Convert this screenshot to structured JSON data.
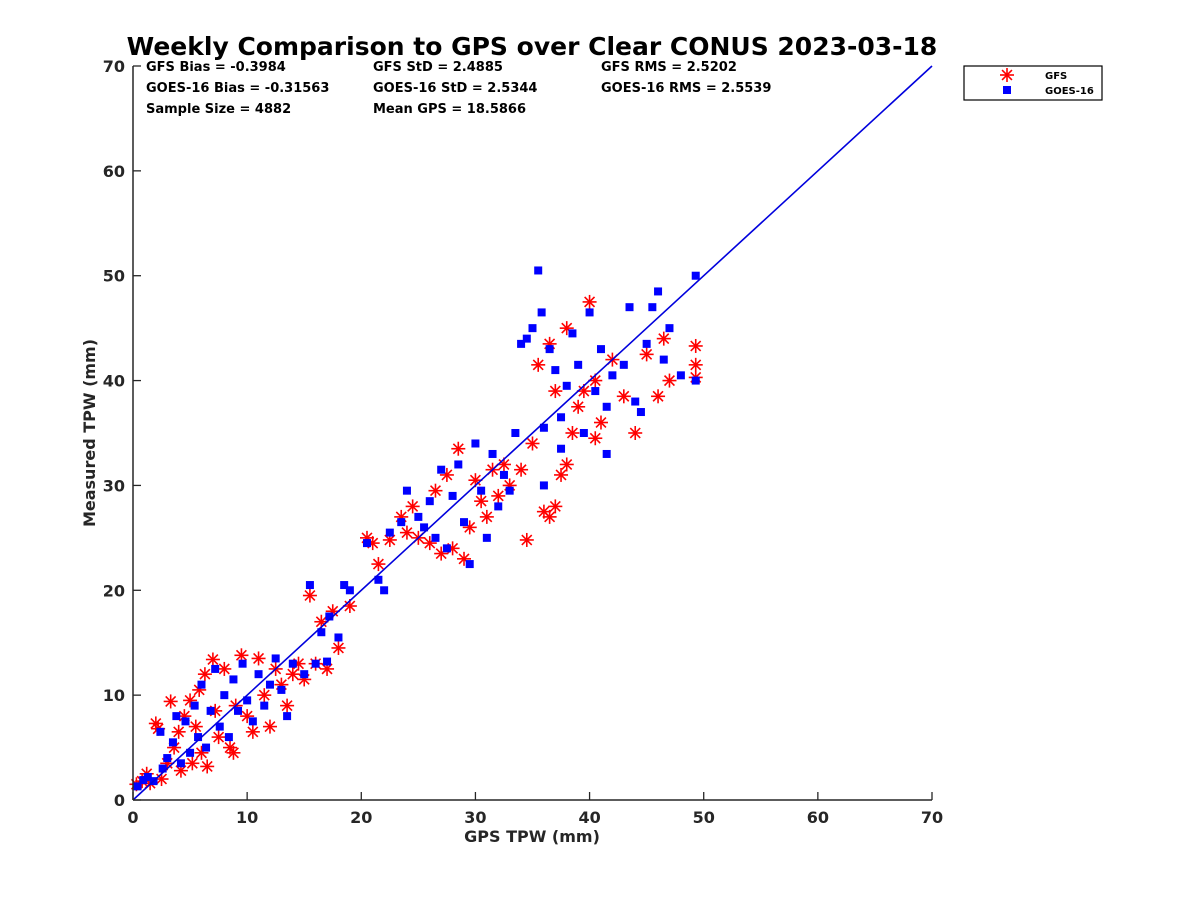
{
  "colors": {
    "gfs": "#ff0000",
    "goes16": "#0000ff",
    "line": "#0000dd",
    "axis": "#262626"
  },
  "stats": {
    "gfs_bias": "GFS Bias = -0.3984",
    "gfs_std": "GFS StD = 2.4885",
    "gfs_rms": "GFS RMS = 2.5202",
    "goes_bias": "GOES-16 Bias = -0.31563",
    "goes_std": "GOES-16 StD = 2.5344",
    "goes_rms": "GOES-16 RMS = 2.5539",
    "sample_size": "Sample Size = 4882",
    "mean_gps": "Mean GPS = 18.5866"
  },
  "chart_data": {
    "type": "scatter",
    "title": "Weekly Comparison to GPS over Clear CONUS 2023-03-18",
    "xlabel": "GPS TPW (mm)",
    "ylabel": "Measured TPW (mm)",
    "xlim": [
      0,
      70
    ],
    "ylim": [
      0,
      70
    ],
    "xticks": [
      "0",
      "10",
      "20",
      "30",
      "40",
      "50",
      "60",
      "70"
    ],
    "yticks": [
      "0",
      "10",
      "20",
      "30",
      "40",
      "50",
      "60",
      "70"
    ],
    "grid": false,
    "legend_position": "top-right outside",
    "reference_line": {
      "x": [
        0,
        70
      ],
      "y": [
        0,
        70
      ]
    },
    "series": [
      {
        "name": "GFS",
        "marker": "asterisk",
        "points": [
          [
            0.3,
            1.5
          ],
          [
            0.8,
            1.8
          ],
          [
            1.2,
            2.5
          ],
          [
            1.5,
            1.6
          ],
          [
            2.0,
            7.3
          ],
          [
            2.2,
            6.8
          ],
          [
            2.5,
            2.0
          ],
          [
            3.0,
            3.5
          ],
          [
            3.3,
            9.4
          ],
          [
            3.6,
            5.0
          ],
          [
            4.0,
            6.5
          ],
          [
            4.2,
            2.8
          ],
          [
            4.5,
            8.0
          ],
          [
            5.0,
            9.5
          ],
          [
            5.2,
            3.5
          ],
          [
            5.5,
            7.0
          ],
          [
            5.8,
            10.5
          ],
          [
            6.0,
            4.5
          ],
          [
            6.3,
            12.0
          ],
          [
            6.5,
            3.2
          ],
          [
            7.0,
            13.4
          ],
          [
            7.2,
            8.5
          ],
          [
            7.5,
            6.0
          ],
          [
            8.0,
            12.5
          ],
          [
            8.5,
            5.0
          ],
          [
            8.8,
            4.5
          ],
          [
            9.0,
            9.0
          ],
          [
            9.5,
            13.8
          ],
          [
            10.0,
            8.0
          ],
          [
            10.5,
            6.5
          ],
          [
            11.0,
            13.5
          ],
          [
            11.5,
            10.0
          ],
          [
            12.0,
            7.0
          ],
          [
            12.5,
            12.5
          ],
          [
            13.0,
            11.0
          ],
          [
            13.5,
            9.0
          ],
          [
            14.0,
            12.0
          ],
          [
            14.5,
            13.0
          ],
          [
            15.0,
            11.5
          ],
          [
            16.0,
            13.0
          ],
          [
            17.0,
            12.5
          ],
          [
            15.5,
            19.5
          ],
          [
            16.5,
            17.0
          ],
          [
            17.5,
            18.0
          ],
          [
            18.0,
            14.5
          ],
          [
            19.0,
            18.5
          ],
          [
            20.5,
            25.0
          ],
          [
            21.0,
            24.5
          ],
          [
            21.5,
            22.5
          ],
          [
            22.5,
            24.8
          ],
          [
            23.5,
            27.0
          ],
          [
            24.0,
            25.5
          ],
          [
            24.5,
            28.0
          ],
          [
            25.0,
            25.0
          ],
          [
            26.0,
            24.5
          ],
          [
            26.5,
            29.5
          ],
          [
            27.0,
            23.5
          ],
          [
            27.5,
            31.0
          ],
          [
            28.0,
            24.0
          ],
          [
            28.5,
            33.5
          ],
          [
            29.0,
            23.0
          ],
          [
            29.5,
            26.0
          ],
          [
            30.0,
            30.5
          ],
          [
            30.5,
            28.5
          ],
          [
            31.0,
            27.0
          ],
          [
            31.5,
            31.5
          ],
          [
            32.0,
            29.0
          ],
          [
            32.5,
            32.0
          ],
          [
            33.0,
            30.0
          ],
          [
            34.0,
            31.5
          ],
          [
            34.5,
            24.8
          ],
          [
            35.0,
            34.0
          ],
          [
            35.5,
            41.5
          ],
          [
            36.0,
            27.5
          ],
          [
            36.5,
            43.5
          ],
          [
            37.0,
            39.0
          ],
          [
            37.5,
            31.0
          ],
          [
            38.0,
            45.0
          ],
          [
            38.5,
            35.0
          ],
          [
            39.0,
            37.5
          ],
          [
            40.0,
            47.5
          ],
          [
            40.5,
            40.0
          ],
          [
            41.0,
            36.0
          ],
          [
            42.0,
            42.0
          ],
          [
            43.0,
            38.5
          ],
          [
            44.0,
            35.0
          ],
          [
            45.0,
            42.5
          ],
          [
            46.0,
            38.5
          ],
          [
            46.5,
            44.0
          ],
          [
            47.0,
            40.0
          ],
          [
            49.3,
            43.3
          ],
          [
            49.3,
            40.3
          ],
          [
            49.3,
            41.5
          ],
          [
            36.5,
            27.0
          ],
          [
            37.0,
            28.0
          ],
          [
            38.0,
            32.0
          ],
          [
            39.5,
            39.0
          ],
          [
            40.5,
            34.5
          ]
        ]
      },
      {
        "name": "GOES-16",
        "marker": "square",
        "points": [
          [
            0.4,
            1.3
          ],
          [
            0.9,
            1.9
          ],
          [
            1.3,
            2.2
          ],
          [
            1.8,
            1.8
          ],
          [
            2.4,
            6.5
          ],
          [
            2.6,
            3.0
          ],
          [
            3.0,
            4.0
          ],
          [
            3.5,
            5.5
          ],
          [
            3.8,
            8.0
          ],
          [
            4.2,
            3.5
          ],
          [
            4.6,
            7.5
          ],
          [
            5.0,
            4.5
          ],
          [
            5.4,
            9.0
          ],
          [
            5.7,
            6.0
          ],
          [
            6.0,
            11.0
          ],
          [
            6.4,
            5.0
          ],
          [
            6.8,
            8.5
          ],
          [
            7.2,
            12.5
          ],
          [
            7.6,
            7.0
          ],
          [
            8.0,
            10.0
          ],
          [
            8.4,
            6.0
          ],
          [
            8.8,
            11.5
          ],
          [
            9.2,
            8.5
          ],
          [
            9.6,
            13.0
          ],
          [
            10.0,
            9.5
          ],
          [
            10.5,
            7.5
          ],
          [
            11.0,
            12.0
          ],
          [
            11.5,
            9.0
          ],
          [
            12.0,
            11.0
          ],
          [
            12.5,
            13.5
          ],
          [
            13.0,
            10.5
          ],
          [
            13.5,
            8.0
          ],
          [
            14.0,
            13.0
          ],
          [
            15.0,
            12.0
          ],
          [
            16.0,
            13.0
          ],
          [
            17.0,
            13.2
          ],
          [
            15.5,
            20.5
          ],
          [
            16.5,
            16.0
          ],
          [
            17.2,
            17.5
          ],
          [
            18.0,
            15.5
          ],
          [
            18.5,
            20.5
          ],
          [
            19.0,
            20.0
          ],
          [
            20.5,
            24.5
          ],
          [
            21.5,
            21.0
          ],
          [
            22.0,
            20.0
          ],
          [
            22.5,
            25.5
          ],
          [
            23.5,
            26.5
          ],
          [
            24.0,
            29.5
          ],
          [
            25.0,
            27.0
          ],
          [
            25.5,
            26.0
          ],
          [
            26.0,
            28.5
          ],
          [
            26.5,
            25.0
          ],
          [
            27.0,
            31.5
          ],
          [
            27.5,
            24.0
          ],
          [
            28.0,
            29.0
          ],
          [
            28.5,
            32.0
          ],
          [
            29.0,
            26.5
          ],
          [
            29.5,
            22.5
          ],
          [
            30.0,
            34.0
          ],
          [
            30.5,
            29.5
          ],
          [
            31.0,
            25.0
          ],
          [
            31.5,
            33.0
          ],
          [
            32.0,
            28.0
          ],
          [
            32.5,
            31.0
          ],
          [
            33.0,
            29.5
          ],
          [
            33.5,
            35.0
          ],
          [
            34.0,
            43.5
          ],
          [
            34.5,
            44.0
          ],
          [
            35.0,
            45.0
          ],
          [
            35.5,
            50.5
          ],
          [
            35.8,
            46.5
          ],
          [
            36.0,
            35.5
          ],
          [
            36.5,
            43.0
          ],
          [
            37.0,
            41.0
          ],
          [
            37.5,
            36.5
          ],
          [
            38.0,
            39.5
          ],
          [
            38.5,
            44.5
          ],
          [
            39.0,
            41.5
          ],
          [
            39.5,
            35.0
          ],
          [
            40.0,
            46.5
          ],
          [
            40.5,
            39.0
          ],
          [
            41.0,
            43.0
          ],
          [
            41.5,
            37.5
          ],
          [
            42.0,
            40.5
          ],
          [
            43.0,
            41.5
          ],
          [
            43.5,
            47.0
          ],
          [
            44.0,
            38.0
          ],
          [
            45.0,
            43.5
          ],
          [
            45.5,
            47.0
          ],
          [
            46.0,
            48.5
          ],
          [
            46.5,
            42.0
          ],
          [
            47.0,
            45.0
          ],
          [
            49.3,
            50.0
          ],
          [
            49.3,
            40.0
          ],
          [
            48.0,
            40.5
          ],
          [
            36.0,
            30.0
          ],
          [
            37.5,
            33.5
          ],
          [
            41.5,
            33.0
          ],
          [
            44.5,
            37.0
          ]
        ]
      }
    ]
  }
}
